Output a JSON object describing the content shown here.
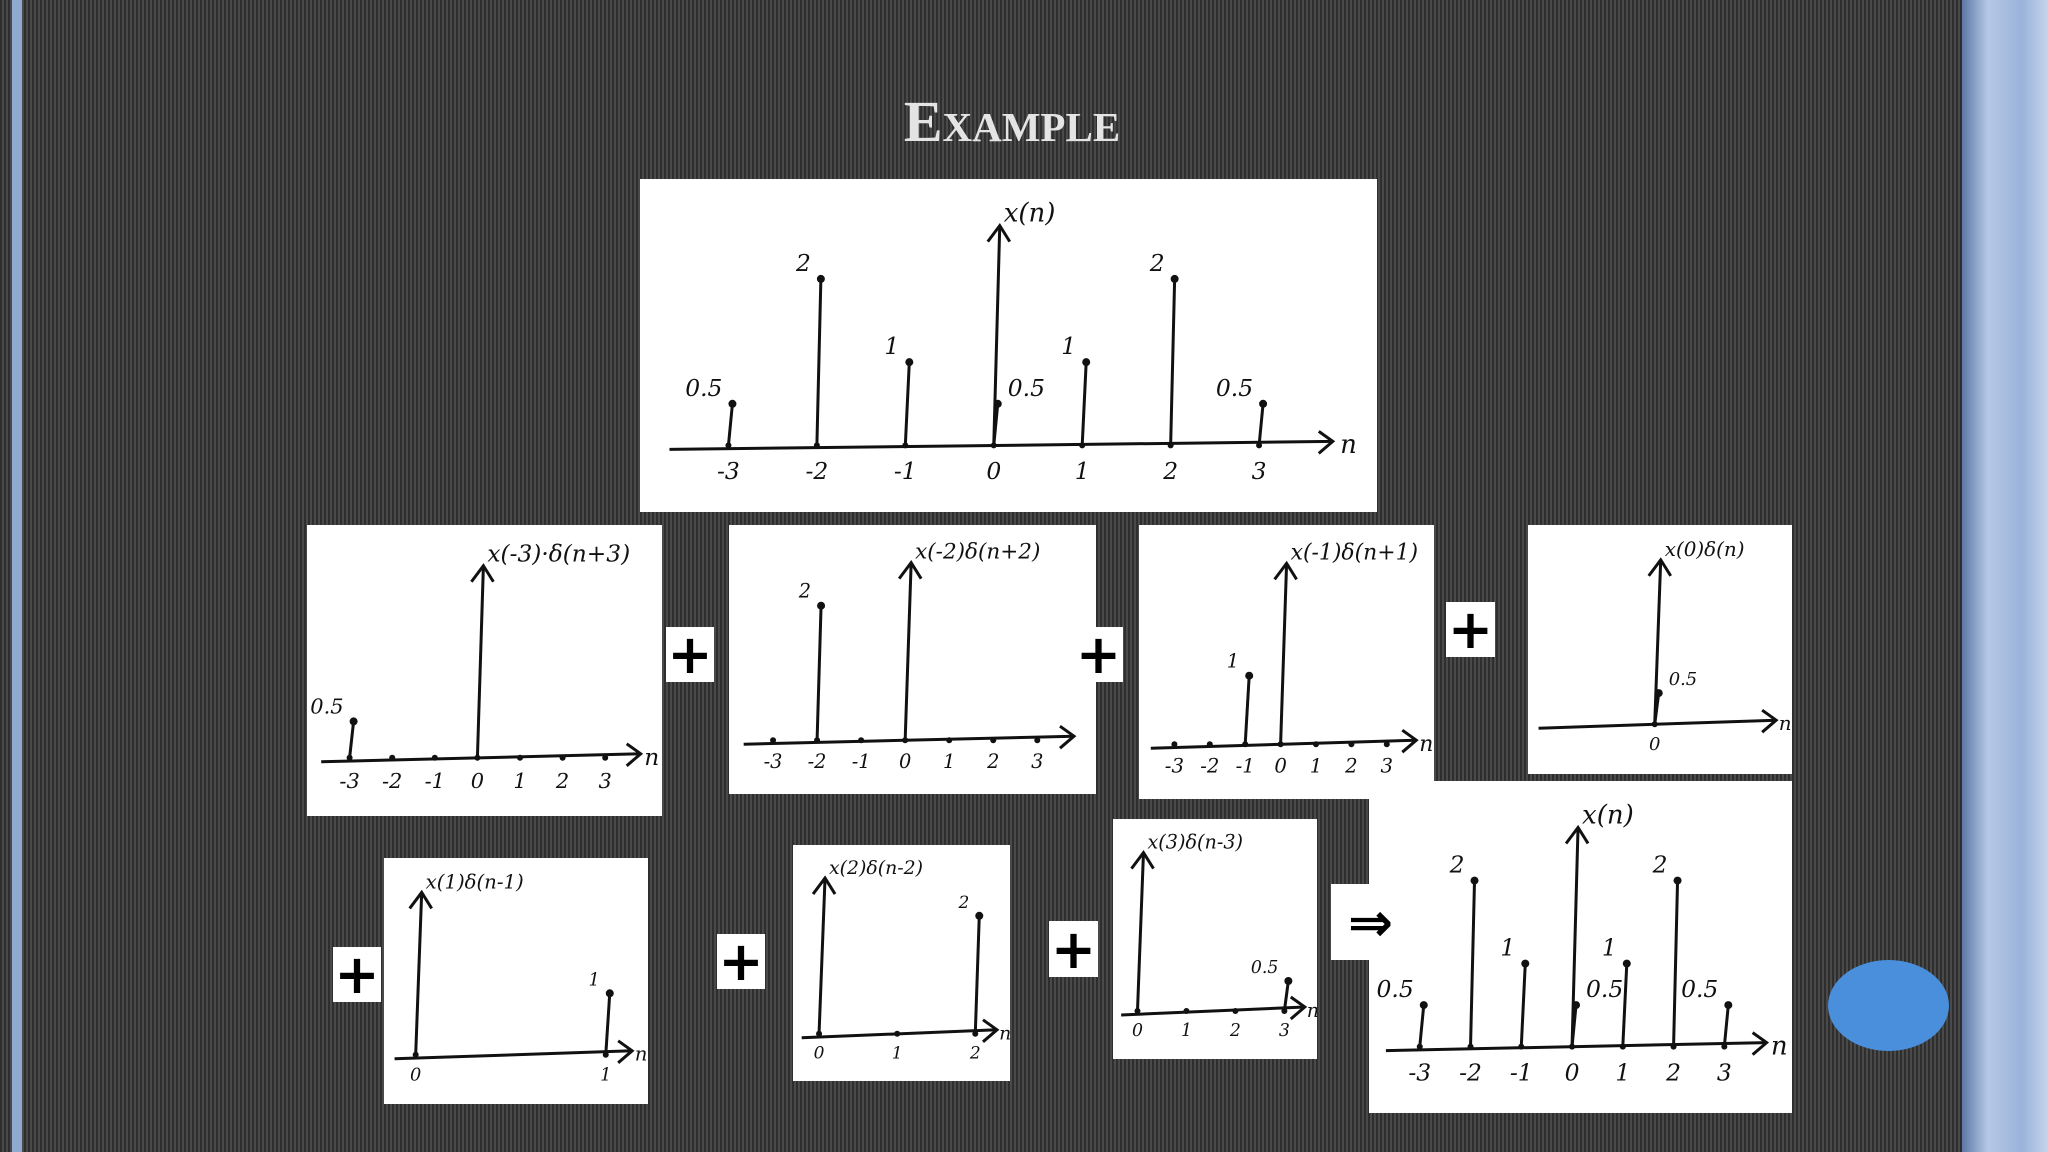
{
  "title": "Example",
  "main": {
    "label": "x(n)",
    "axis": "n",
    "ticks": [
      -3,
      -2,
      -1,
      0,
      1,
      2,
      3
    ],
    "stems": [
      {
        "n": -3,
        "value": 0.5,
        "label": "0.5"
      },
      {
        "n": -2,
        "value": 2,
        "label": "2"
      },
      {
        "n": -1,
        "value": 1,
        "label": "1"
      },
      {
        "n": 0,
        "value": 0.5,
        "label": "0.5"
      },
      {
        "n": 1,
        "value": 1,
        "label": "1"
      },
      {
        "n": 2,
        "value": 2,
        "label": "2"
      },
      {
        "n": 3,
        "value": 0.5,
        "label": "0.5"
      }
    ]
  },
  "panels": [
    {
      "label": "x(-3)·δ(n+3)",
      "axis": "n",
      "ticks": [
        -3,
        -2,
        -1,
        0,
        1,
        2,
        3
      ],
      "stems": [
        {
          "n": -3,
          "value": 0.5,
          "label": "0.5"
        }
      ]
    },
    {
      "label": "x(-2)δ(n+2)",
      "axis": "",
      "ticks": [
        -3,
        -2,
        -1,
        0,
        1,
        2,
        3
      ],
      "stems": [
        {
          "n": -2,
          "value": 2,
          "label": "2"
        }
      ]
    },
    {
      "label": "x(-1)δ(n+1)",
      "axis": "n",
      "ticks": [
        -3,
        -2,
        -1,
        0,
        1,
        2,
        3
      ],
      "stems": [
        {
          "n": -1,
          "value": 1,
          "label": "1"
        }
      ]
    },
    {
      "label": "x(0)δ(n)",
      "axis": "n",
      "ticks": [
        0
      ],
      "stems": [
        {
          "n": 0,
          "value": 0.5,
          "label": "0.5"
        }
      ]
    },
    {
      "label": "x(1)δ(n-1)",
      "axis": "n",
      "ticks": [
        0,
        1
      ],
      "stems": [
        {
          "n": 1,
          "value": 1,
          "label": "1"
        }
      ]
    },
    {
      "label": "x(2)δ(n-2)",
      "axis": "n",
      "ticks": [
        0,
        1,
        2
      ],
      "stems": [
        {
          "n": 2,
          "value": 2,
          "label": "2"
        }
      ]
    },
    {
      "label": "x(3)δ(n-3)",
      "axis": "n",
      "ticks": [
        0,
        1,
        2,
        3
      ],
      "stems": [
        {
          "n": 3,
          "value": 0.5,
          "label": "0.5"
        }
      ]
    },
    {
      "label": "x(n)",
      "axis": "n",
      "ticks": [
        -3,
        -2,
        -1,
        0,
        1,
        2,
        3
      ],
      "stems": [
        {
          "n": -3,
          "value": 0.5,
          "label": "0.5"
        },
        {
          "n": -2,
          "value": 2,
          "label": "2"
        },
        {
          "n": -1,
          "value": 1,
          "label": "1"
        },
        {
          "n": 0,
          "value": 0.5,
          "label": "0.5"
        },
        {
          "n": 1,
          "value": 1,
          "label": "1"
        },
        {
          "n": 2,
          "value": 2,
          "label": "2"
        },
        {
          "n": 3,
          "value": 0.5,
          "label": "0.5"
        }
      ]
    }
  ],
  "operators": [
    "+",
    "+",
    "+",
    "+",
    "+",
    "+",
    "⇒"
  ]
}
